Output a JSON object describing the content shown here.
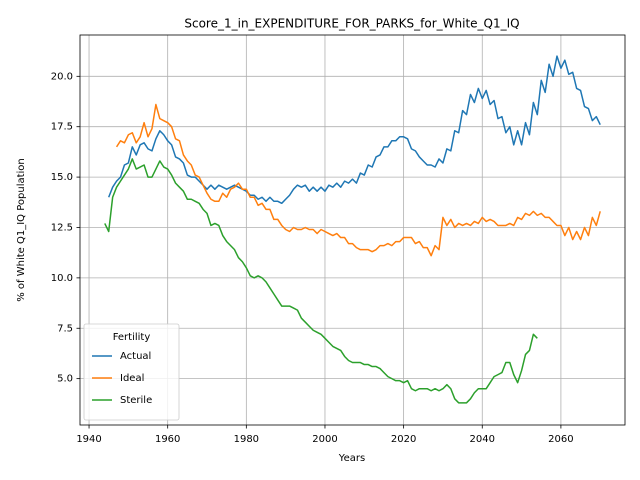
{
  "chart_data": {
    "type": "line",
    "title": "Score_1_in_EXPENDITURE_FOR_PARKS_for_White_Q1_IQ",
    "xlabel": "Years",
    "ylabel": "% of White Q1_IQ Population",
    "x": [
      1944,
      1945,
      1946,
      1947,
      1948,
      1949,
      1950,
      1951,
      1952,
      1953,
      1954,
      1955,
      1956,
      1957,
      1958,
      1959,
      1960,
      1961,
      1962,
      1963,
      1964,
      1965,
      1966,
      1967,
      1968,
      1969,
      1970,
      1971,
      1972,
      1973,
      1974,
      1975,
      1976,
      1977,
      1978,
      1979,
      1980,
      1981,
      1982,
      1983,
      1984,
      1985,
      1986,
      1987,
      1988,
      1989,
      1990,
      1991,
      1992,
      1993,
      1994,
      1995,
      1996,
      1997,
      1998,
      1999,
      2000,
      2001,
      2002,
      2003,
      2004,
      2005,
      2006,
      2007,
      2008,
      2009,
      2010,
      2011,
      2012,
      2013,
      2014,
      2015,
      2016,
      2017,
      2018,
      2019,
      2020,
      2021,
      2022,
      2023,
      2024,
      2025,
      2026,
      2027,
      2028,
      2029,
      2030,
      2031,
      2032,
      2033,
      2034,
      2035,
      2036,
      2037,
      2038,
      2039,
      2040,
      2041,
      2042,
      2043,
      2044,
      2045,
      2046,
      2047,
      2048,
      2049,
      2050,
      2051,
      2052,
      2053,
      2054,
      2055,
      2056,
      2057,
      2058,
      2059,
      2060,
      2061,
      2062,
      2063,
      2064,
      2065,
      2066,
      2067,
      2068,
      2069,
      2070
    ],
    "series": [
      {
        "name": "Actual",
        "color": "#1f77b4",
        "values": [
          null,
          14.0,
          14.5,
          14.8,
          15.0,
          15.6,
          15.7,
          16.5,
          16.1,
          16.6,
          16.7,
          16.4,
          16.3,
          16.9,
          17.3,
          17.1,
          16.8,
          16.6,
          16.0,
          15.9,
          15.7,
          15.1,
          15.0,
          15.0,
          14.8,
          14.6,
          14.4,
          14.6,
          14.4,
          14.6,
          14.5,
          14.4,
          14.5,
          14.6,
          14.5,
          14.4,
          14.3,
          14.1,
          14.1,
          13.9,
          14.0,
          13.8,
          14.0,
          13.8,
          13.8,
          13.7,
          13.9,
          14.1,
          14.4,
          14.6,
          14.5,
          14.6,
          14.3,
          14.5,
          14.3,
          14.5,
          14.3,
          14.6,
          14.5,
          14.7,
          14.5,
          14.8,
          14.7,
          14.9,
          14.7,
          15.2,
          15.1,
          15.6,
          15.5,
          16.0,
          16.1,
          16.5,
          16.5,
          16.8,
          16.8,
          17.0,
          17.0,
          16.9,
          16.4,
          16.3,
          16.0,
          15.8,
          15.6,
          15.6,
          15.5,
          15.9,
          15.7,
          16.4,
          16.3,
          17.3,
          17.2,
          18.3,
          18.1,
          19.1,
          18.7,
          19.4,
          18.9,
          19.3,
          18.6,
          18.8,
          17.9,
          18.0,
          17.2,
          17.5,
          16.6,
          17.3,
          16.6,
          17.7,
          17.1,
          18.7,
          18.1,
          19.8,
          19.2,
          20.6,
          20.0,
          21.0,
          20.4,
          20.8,
          20.1,
          20.2,
          19.4,
          19.3,
          18.5,
          18.4,
          17.8,
          18.0,
          17.6
        ]
      },
      {
        "name": "Ideal",
        "color": "#ff7f0e",
        "values": [
          null,
          null,
          null,
          16.5,
          16.8,
          16.7,
          17.1,
          17.2,
          16.7,
          17.0,
          17.7,
          17.0,
          17.4,
          18.6,
          17.9,
          17.8,
          17.7,
          17.5,
          16.9,
          16.8,
          16.1,
          15.8,
          15.6,
          15.1,
          15.0,
          14.6,
          14.2,
          13.9,
          13.8,
          13.8,
          14.2,
          14.0,
          14.4,
          14.5,
          14.7,
          14.4,
          14.4,
          14.0,
          14.0,
          13.6,
          13.7,
          13.4,
          13.4,
          12.9,
          12.9,
          12.6,
          12.4,
          12.3,
          12.5,
          12.4,
          12.4,
          12.5,
          12.4,
          12.4,
          12.2,
          12.4,
          12.3,
          12.2,
          12.1,
          12.2,
          12.0,
          12.0,
          11.7,
          11.7,
          11.5,
          11.4,
          11.4,
          11.4,
          11.3,
          11.4,
          11.6,
          11.6,
          11.7,
          11.6,
          11.8,
          11.8,
          12.0,
          12.0,
          12.0,
          11.7,
          11.8,
          11.5,
          11.5,
          11.1,
          11.6,
          11.4,
          13.0,
          12.6,
          12.9,
          12.5,
          12.7,
          12.6,
          12.7,
          12.6,
          12.8,
          12.7,
          13.0,
          12.8,
          12.9,
          12.8,
          12.6,
          12.6,
          12.6,
          12.7,
          12.6,
          13.0,
          12.9,
          13.2,
          13.1,
          13.3,
          13.1,
          13.2,
          13.0,
          13.0,
          12.8,
          12.6,
          12.6,
          12.1,
          12.5,
          11.9,
          12.3,
          11.9,
          12.5,
          12.1,
          13.0,
          12.6,
          13.3
        ]
      },
      {
        "name": "Sterile",
        "color": "#2ca02c",
        "values": [
          12.7,
          12.3,
          14.0,
          14.5,
          14.8,
          15.1,
          15.4,
          15.9,
          15.4,
          15.5,
          15.6,
          15.0,
          15.0,
          15.4,
          15.8,
          15.5,
          15.4,
          15.1,
          14.7,
          14.5,
          14.3,
          13.9,
          13.9,
          13.8,
          13.7,
          13.4,
          13.2,
          12.6,
          12.7,
          12.6,
          12.1,
          11.8,
          11.6,
          11.4,
          11.0,
          10.8,
          10.5,
          10.1,
          10.0,
          10.1,
          10.0,
          9.8,
          9.5,
          9.2,
          8.9,
          8.6,
          8.6,
          8.6,
          8.5,
          8.4,
          8.0,
          7.8,
          7.6,
          7.4,
          7.3,
          7.2,
          7.0,
          6.8,
          6.6,
          6.5,
          6.4,
          6.1,
          5.9,
          5.8,
          5.8,
          5.8,
          5.7,
          5.7,
          5.6,
          5.6,
          5.5,
          5.3,
          5.1,
          5.0,
          4.9,
          4.9,
          4.8,
          4.9,
          4.5,
          4.4,
          4.5,
          4.5,
          4.5,
          4.4,
          4.5,
          4.4,
          4.5,
          4.7,
          4.5,
          4.0,
          3.8,
          3.8,
          3.8,
          4.0,
          4.3,
          4.5,
          4.5,
          4.5,
          4.8,
          5.1,
          5.2,
          5.3,
          5.8,
          5.8,
          5.2,
          4.8,
          5.4,
          6.2,
          6.4,
          7.2,
          7.0,
          null,
          null,
          null,
          null,
          null,
          null,
          null,
          null,
          null,
          null,
          null,
          null,
          null,
          null,
          null,
          null
        ]
      }
    ],
    "xlim": [
      1937.7,
      2076.3
    ],
    "ylim": [
      2.7,
      22.05
    ],
    "xticks": [
      1940,
      1960,
      1980,
      2000,
      2020,
      2040,
      2060
    ],
    "yticks": [
      {
        "value": 5,
        "label": "5.0"
      },
      {
        "value": 7.5,
        "label": "7.5"
      },
      {
        "value": 10,
        "label": "10.0"
      },
      {
        "value": 12.5,
        "label": "12.5"
      },
      {
        "value": 15,
        "label": "15.0"
      },
      {
        "value": 17.5,
        "label": "17.5"
      },
      {
        "value": 20,
        "label": "20.0"
      }
    ],
    "grid": true,
    "legend_title": "Fertility",
    "legend_loc": "lower left"
  }
}
